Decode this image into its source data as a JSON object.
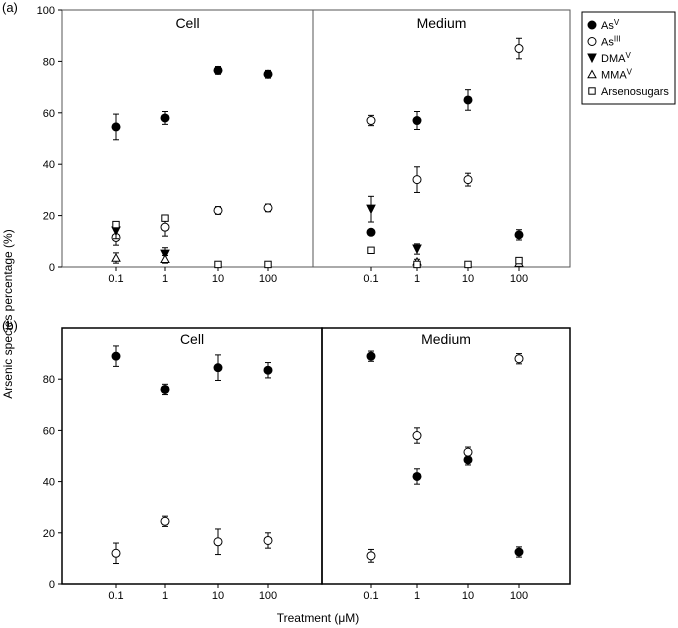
{
  "figure": {
    "ylabel": "Arsenic species percentage (%)",
    "xlabel": "Treatment (μM)"
  },
  "legend": [
    {
      "name": "As",
      "sup": "V",
      "marker": "filled-circle"
    },
    {
      "name": "As",
      "sup": "III",
      "marker": "open-circle"
    },
    {
      "name": "DMA",
      "sup": "V",
      "marker": "filled-triangle-down"
    },
    {
      "name": "MMA",
      "sup": "V",
      "marker": "open-triangle-up"
    },
    {
      "name": "Arsenosugars",
      "sup": "",
      "marker": "open-square"
    }
  ],
  "chart_data": [
    {
      "type": "scatter",
      "panel": "(a)",
      "categories": [
        "0.1",
        "1",
        "10",
        "100"
      ],
      "ylim": [
        0,
        100
      ],
      "yticks": [
        0,
        20,
        40,
        60,
        80,
        100
      ],
      "subpanels": [
        {
          "title": "Cell",
          "series": [
            {
              "name": "AsV",
              "marker": "filled-circle",
              "values": [
                54.5,
                58,
                76.5,
                75
              ],
              "err": [
                5,
                2.5,
                1.5,
                1.5
              ]
            },
            {
              "name": "AsIII",
              "marker": "open-circle",
              "values": [
                11.5,
                15.5,
                22,
                23
              ],
              "err": [
                3,
                3.5,
                1.5,
                1.5
              ]
            },
            {
              "name": "DMAV",
              "marker": "filled-triangle-down",
              "values": [
                14,
                5,
                null,
                null
              ],
              "err": [
                3,
                2.5,
                0,
                0
              ]
            },
            {
              "name": "MMAV",
              "marker": "open-triangle-up",
              "values": [
                3.5,
                3,
                null,
                null
              ],
              "err": [
                2,
                1.5,
                0,
                0
              ]
            },
            {
              "name": "Arsenosugars",
              "marker": "open-square",
              "values": [
                16.5,
                19,
                1,
                1
              ],
              "err": [
                1,
                1,
                0.5,
                0.5
              ]
            }
          ]
        },
        {
          "title": "Medium",
          "series": [
            {
              "name": "AsV",
              "marker": "filled-circle",
              "values": [
                13.5,
                57,
                65,
                12.5
              ],
              "err": [
                0.8,
                3.5,
                4,
                2
              ]
            },
            {
              "name": "AsIII",
              "marker": "open-circle",
              "values": [
                57,
                34,
                34,
                85
              ],
              "err": [
                2,
                5,
                2.5,
                4
              ]
            },
            {
              "name": "DMAV",
              "marker": "filled-triangle-down",
              "values": [
                22.5,
                7,
                null,
                null
              ],
              "err": [
                5,
                2,
                0,
                0
              ]
            },
            {
              "name": "MMAV",
              "marker": "open-triangle-up",
              "values": [
                null,
                2,
                null,
                1.5
              ],
              "err": [
                0,
                1,
                0,
                1
              ]
            },
            {
              "name": "Arsenosugars",
              "marker": "open-square",
              "values": [
                6.5,
                1,
                1,
                2.5
              ],
              "err": [
                0.5,
                0.5,
                0.5,
                1
              ]
            }
          ]
        }
      ]
    },
    {
      "type": "scatter",
      "panel": "(b)",
      "categories": [
        "0.1",
        "1",
        "10",
        "100"
      ],
      "ylim": [
        0,
        100
      ],
      "yticks": [
        0,
        20,
        40,
        60,
        80
      ],
      "subpanels": [
        {
          "title": "Cell",
          "series": [
            {
              "name": "AsV",
              "marker": "filled-circle",
              "values": [
                89,
                76,
                84.5,
                83.5
              ],
              "err": [
                4,
                2,
                5,
                3
              ]
            },
            {
              "name": "AsIII",
              "marker": "open-circle",
              "values": [
                12,
                24.5,
                16.5,
                17
              ],
              "err": [
                4,
                2,
                5,
                3
              ]
            }
          ]
        },
        {
          "title": "Medium",
          "series": [
            {
              "name": "AsV",
              "marker": "filled-circle",
              "values": [
                89,
                42,
                48.5,
                12.5
              ],
              "err": [
                2,
                3,
                2,
                2
              ]
            },
            {
              "name": "AsIII",
              "marker": "open-circle",
              "values": [
                11,
                58,
                51.5,
                88
              ],
              "err": [
                2.5,
                3,
                2,
                2
              ]
            }
          ]
        }
      ]
    }
  ]
}
